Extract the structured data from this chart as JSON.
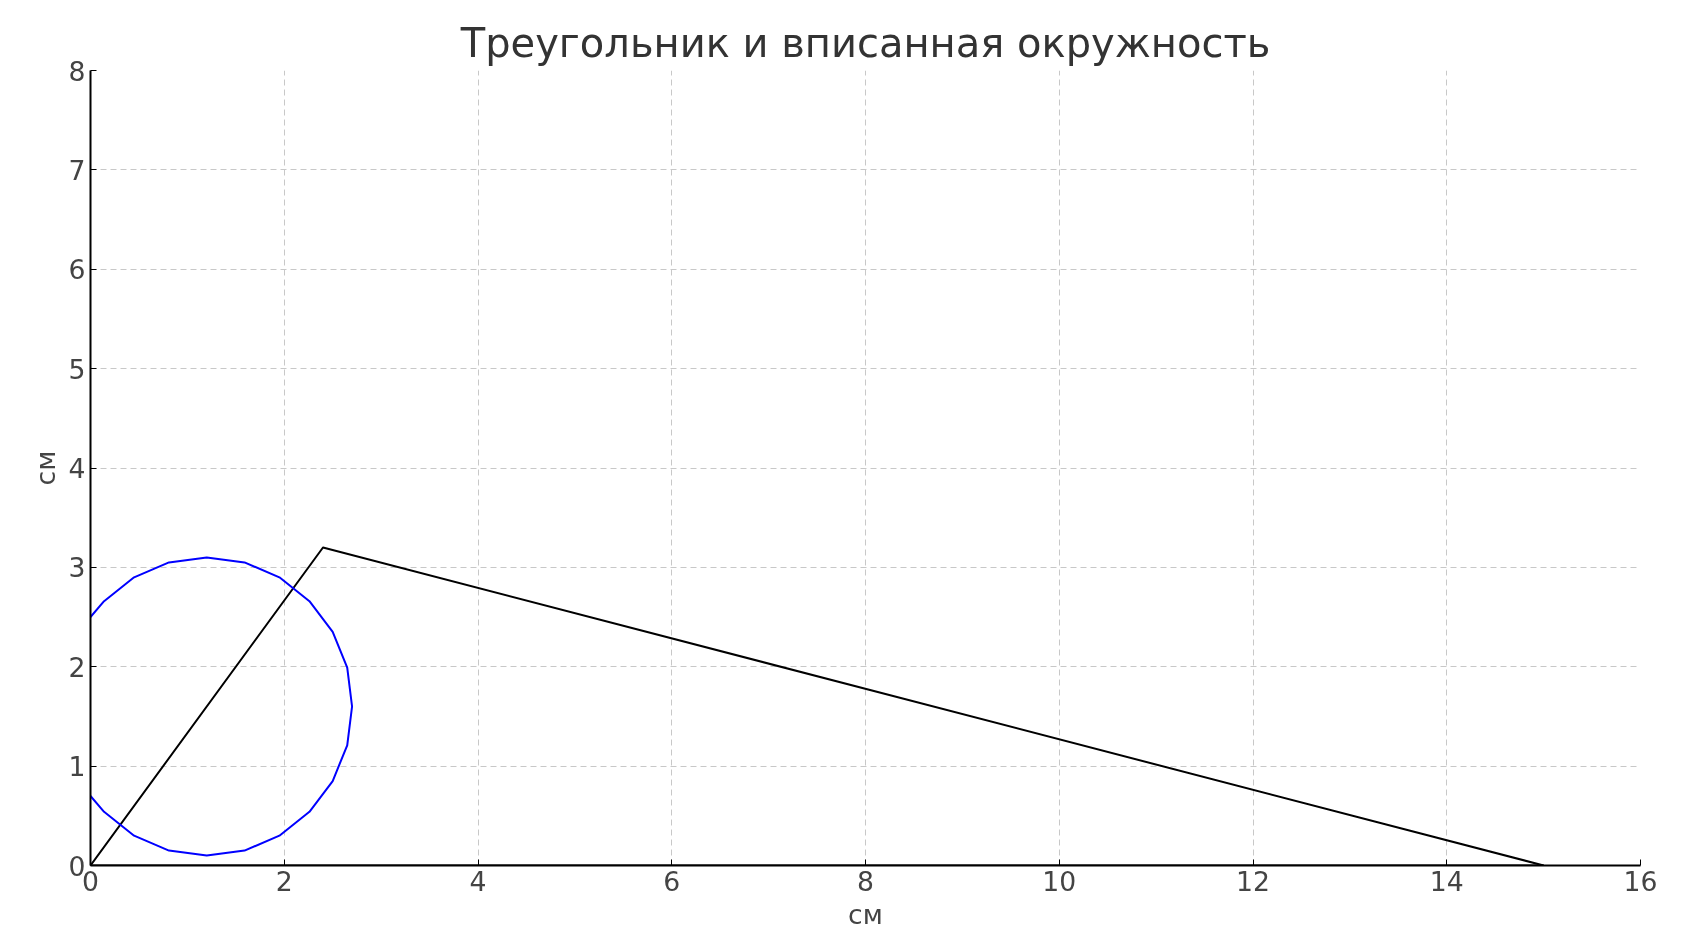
{
  "chart_data": {
    "type": "line",
    "title": "Треугольник и вписанная окружность",
    "xlabel": "см",
    "ylabel": "см",
    "xlim": [
      0,
      16
    ],
    "ylim": [
      0,
      8
    ],
    "xticks": [
      0,
      2,
      4,
      6,
      8,
      10,
      12,
      14,
      16
    ],
    "yticks": [
      0,
      1,
      2,
      3,
      4,
      5,
      6,
      7,
      8
    ],
    "grid": true,
    "line_style": "solid",
    "marker": "none",
    "series": [
      {
        "color": "#000000",
        "x": [
          0,
          2.4,
          15
        ],
        "values": [
          0,
          3.2,
          0
        ]
      },
      {
        "color": "#000000",
        "x": [
          0,
          15
        ],
        "values": [
          0,
          0
        ]
      },
      {
        "color": "#0000ff",
        "x": [
          0,
          0.14,
          0.45,
          0.81,
          1.2,
          1.59,
          1.95,
          2.26,
          2.5,
          2.65,
          2.7,
          2.65,
          2.5,
          2.26,
          1.95,
          1.59,
          1.2,
          0.81,
          0.45,
          0.14,
          0
        ],
        "values": [
          2.5,
          2.66,
          2.9,
          3.05,
          3.1,
          3.05,
          2.9,
          2.66,
          2.35,
          1.99,
          1.6,
          1.21,
          0.85,
          0.54,
          0.3,
          0.15,
          0.1,
          0.15,
          0.3,
          0.54,
          0.7
        ]
      }
    ]
  }
}
